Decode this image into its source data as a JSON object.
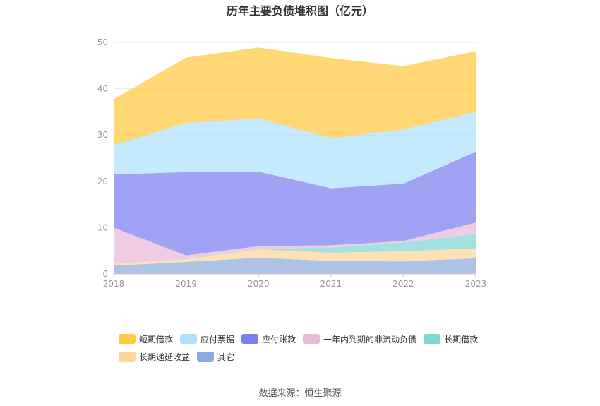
{
  "chart_data": {
    "type": "area",
    "stacked": true,
    "title": "历年主要负债堆积图（亿元）",
    "x": [
      "2018",
      "2019",
      "2020",
      "2021",
      "2022",
      "2023"
    ],
    "ylim": [
      0,
      50
    ],
    "yticks": [
      0,
      10,
      20,
      30,
      40,
      50
    ],
    "grid": true,
    "legend_position": "bottom",
    "series": [
      {
        "name": "其它",
        "color": "#8faadc",
        "values": [
          1.8,
          2.6,
          3.5,
          2.8,
          2.7,
          3.4
        ]
      },
      {
        "name": "长期递延收益",
        "color": "#ffd699",
        "values": [
          0.4,
          0.6,
          1.8,
          1.8,
          2.2,
          2.1
        ]
      },
      {
        "name": "长期借款",
        "color": "#7fd6d6",
        "values": [
          0.0,
          0.1,
          0.1,
          1.1,
          1.9,
          3.1
        ]
      },
      {
        "name": "一年内到期的非流动负债",
        "color": "#e9b9d8",
        "values": [
          7.8,
          0.7,
          0.6,
          0.5,
          0.3,
          2.5
        ]
      },
      {
        "name": "应付账款",
        "color": "#7b7ff0",
        "values": [
          11.5,
          18.0,
          16.1,
          12.3,
          12.4,
          15.3
        ]
      },
      {
        "name": "应付票据",
        "color": "#aee0ff",
        "values": [
          6.3,
          10.6,
          11.5,
          10.8,
          11.7,
          8.6
        ]
      },
      {
        "name": "短期借款",
        "color": "#ffc940",
        "values": [
          9.9,
          14.1,
          15.3,
          17.3,
          13.7,
          13.1
        ]
      }
    ]
  },
  "legend_order": [
    "短期借款",
    "应付票据",
    "应付账款",
    "一年内到期的非流动负债",
    "长期借款",
    "长期递延收益",
    "其它"
  ],
  "source": "数据来源：恒生聚源"
}
